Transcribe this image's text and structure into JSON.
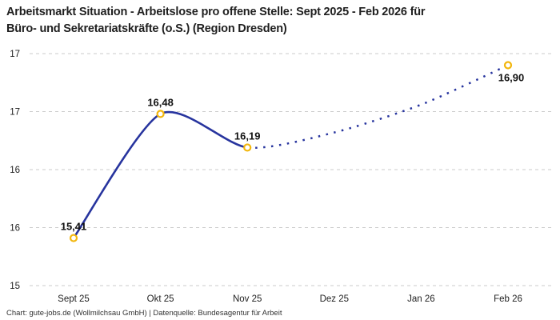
{
  "header": {
    "title_line1": "Arbeitsmarkt Situation - Arbeitslose pro offene Stelle: Sept 2025 - Feb 2026 für",
    "title_line2": "Büro- und Sekretariatskräfte (o.S.) (Region Dresden)"
  },
  "footer": {
    "credit": "Chart: gute-jobs.de (Wollmilchsau GmbH) | Datenquelle: Bundesagentur für Arbeit"
  },
  "chart_data": {
    "type": "line",
    "title": "Arbeitsmarkt Situation - Arbeitslose pro offene Stelle: Sept 2025 - Feb 2026 für Büro- und Sekretariatskräfte (o.S.) (Region Dresden)",
    "xlabel": "",
    "ylabel": "",
    "categories": [
      "Sept 25",
      "Okt 25",
      "Nov 25",
      "Dez 25",
      "Jan 26",
      "Feb 26"
    ],
    "points": [
      {
        "category": "Sept 25",
        "value": 15.41,
        "label": "15,41",
        "label_pos": "above",
        "marker": true,
        "segment": "actual",
        "estimated": false
      },
      {
        "category": "Okt 25",
        "value": 16.48,
        "label": "16,48",
        "label_pos": "above",
        "marker": true,
        "segment": "actual",
        "estimated": false
      },
      {
        "category": "Nov 25",
        "value": 16.19,
        "label": "16,19",
        "label_pos": "above",
        "marker": true,
        "segment": "actual",
        "estimated": false
      },
      {
        "category": "Dez 25",
        "value": 16.32,
        "label": "",
        "label_pos": "none",
        "marker": false,
        "segment": "forecast",
        "estimated": true
      },
      {
        "category": "Jan 26",
        "value": 16.56,
        "label": "",
        "label_pos": "none",
        "marker": false,
        "segment": "forecast",
        "estimated": true
      },
      {
        "category": "Feb 26",
        "value": 16.9,
        "label": "16,90",
        "label_pos": "below",
        "marker": true,
        "segment": "forecast",
        "estimated": false
      }
    ],
    "solid_through_index": 2,
    "ylim": [
      15,
      17
    ],
    "yticks": [
      {
        "value": 15.0,
        "label": "15"
      },
      {
        "value": 15.5,
        "label": "16"
      },
      {
        "value": 16.0,
        "label": "16"
      },
      {
        "value": 16.5,
        "label": "17"
      },
      {
        "value": 17.0,
        "label": "17"
      }
    ],
    "grid": "dashed-horizontal",
    "legend_position": "none",
    "line_style_actual": "solid",
    "line_style_forecast": "dotted",
    "colors": {
      "line": "#27349E",
      "marker_ring": "#F2B60D",
      "marker_fill": "#FFFFFF",
      "grid": "#CBCBCB",
      "axis_text": "#1F1F1F",
      "point_label_text": "#111111"
    }
  }
}
